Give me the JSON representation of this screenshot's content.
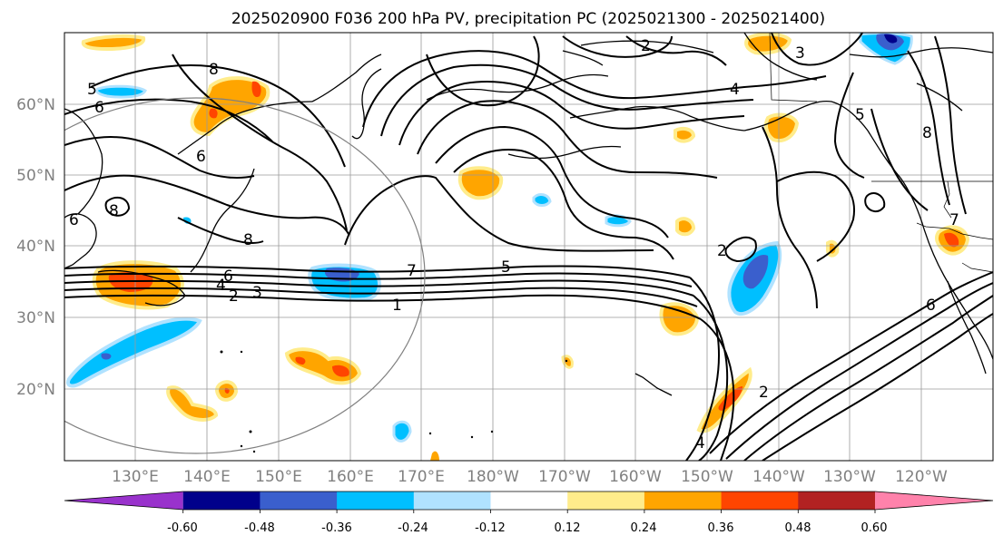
{
  "title": "2025020900 F036 200 hPa PV, precipitation PC (2025021300 - 2025021400)",
  "lat_labels": [
    "60°N",
    "50°N",
    "40°N",
    "30°N",
    "20°N"
  ],
  "lon_labels": [
    "130°E",
    "140°E",
    "150°E",
    "160°E",
    "170°E",
    "180°W",
    "170°W",
    "160°W",
    "150°W",
    "140°W",
    "130°W",
    "120°W"
  ],
  "colorbar": {
    "colors": [
      "#9932cc",
      "#00008b",
      "#3a5fcd",
      "#00bfff",
      "#b0e2ff",
      "#ffffff",
      "#ffec8b",
      "#ffa500",
      "#ff4500",
      "#b22222",
      "#ff82ab"
    ],
    "tick_labels": [
      "-0.60",
      "-0.48",
      "-0.36",
      "-0.24",
      "-0.12",
      "0.12",
      "0.24",
      "0.36",
      "0.48",
      "0.60"
    ]
  },
  "pv_contour_labels": [
    "5",
    "6",
    "8",
    "6",
    "8",
    "6",
    "8",
    "6",
    "4",
    "2",
    "3",
    "1",
    "7",
    "5",
    "2",
    "3",
    "4",
    "5",
    "8",
    "7",
    "6",
    "2",
    "2",
    "4"
  ]
}
